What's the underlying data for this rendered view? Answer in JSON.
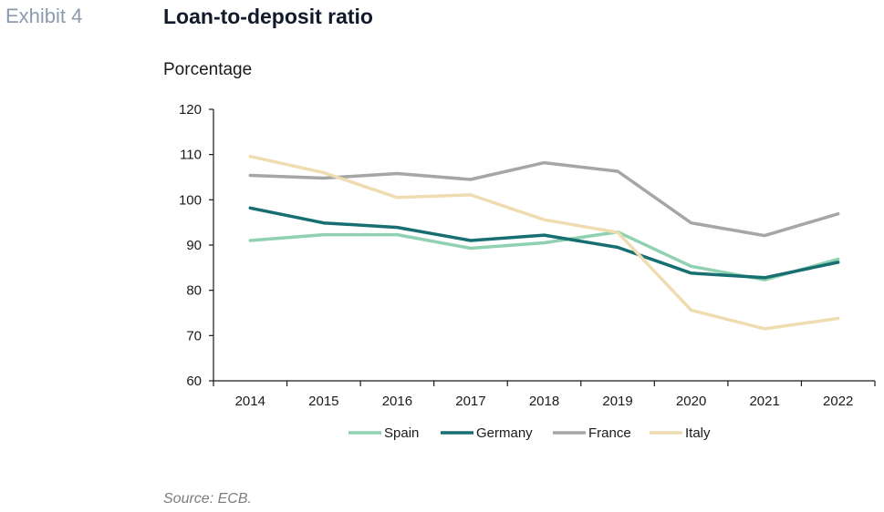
{
  "header": {
    "exhibit": "Exhibit 4",
    "title": "Loan-to-deposit ratio",
    "subtitle": "Porcentage"
  },
  "footer": {
    "source": "Source: ECB."
  },
  "chart_data": {
    "type": "line",
    "title": "Loan-to-deposit ratio",
    "ylabel": "Porcentage",
    "xlabel": "",
    "x": [
      "2014",
      "2015",
      "2016",
      "2017",
      "2018",
      "2019",
      "2020",
      "2021",
      "2022"
    ],
    "ylim": [
      60,
      120
    ],
    "yticks": [
      60,
      70,
      80,
      90,
      100,
      110,
      120
    ],
    "grid": false,
    "legend": "bottom",
    "series": [
      {
        "name": "Spain",
        "color": "#8fd1b0",
        "values": [
          91.0,
          92.3,
          92.3,
          89.3,
          90.5,
          92.9,
          85.3,
          82.3,
          86.9
        ]
      },
      {
        "name": "Germany",
        "color": "#176f72",
        "values": [
          98.2,
          94.9,
          93.9,
          91.0,
          92.2,
          89.5,
          83.8,
          82.8,
          86.2
        ]
      },
      {
        "name": "France",
        "color": "#a6a6a6",
        "values": [
          105.4,
          104.8,
          105.8,
          104.5,
          108.2,
          106.3,
          94.9,
          92.1,
          96.9
        ]
      },
      {
        "name": "Italy",
        "color": "#efdcb0",
        "values": [
          109.6,
          106.0,
          100.5,
          101.1,
          95.6,
          92.8,
          75.6,
          71.5,
          73.8
        ]
      }
    ]
  }
}
